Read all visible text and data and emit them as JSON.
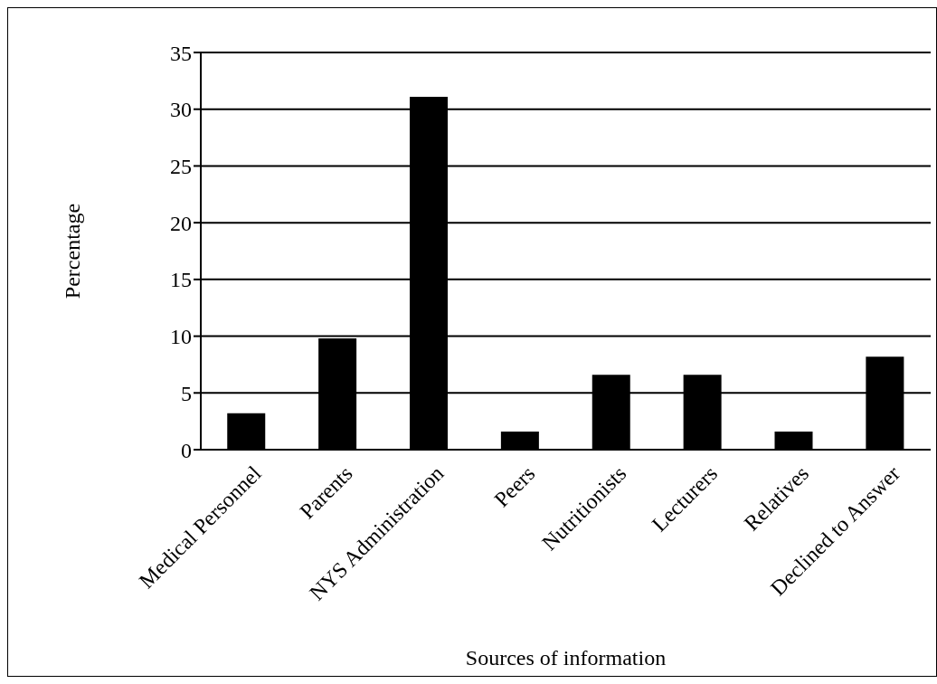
{
  "chart_data": {
    "type": "bar",
    "xlabel": "Sources of information",
    "ylabel": "Percentage",
    "categories": [
      "Medical Personnel",
      "Parents",
      "NYS Administration",
      "Peers",
      "Nutritionists",
      "Lecturers",
      "Relatives",
      "Declined to Answer"
    ],
    "values": [
      3.2,
      9.8,
      31.1,
      1.6,
      6.6,
      6.6,
      1.6,
      8.2
    ],
    "color": "#000000",
    "ylim": [
      0,
      35
    ],
    "yticks": [
      0,
      5,
      10,
      15,
      20,
      25,
      30,
      35
    ],
    "grid": "y",
    "legend": false
  }
}
